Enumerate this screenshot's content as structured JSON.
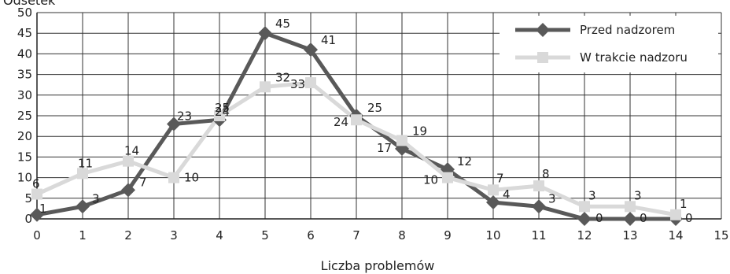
{
  "chart_data": {
    "type": "line",
    "title": "",
    "xlabel": "Liczba problemów",
    "ylabel": "Odsetek",
    "xlim": [
      0,
      15
    ],
    "ylim": [
      0,
      50
    ],
    "x_ticks": [
      "0",
      "1",
      "2",
      "3",
      "4",
      "5",
      "6",
      "7",
      "8",
      "9",
      "10",
      "11",
      "12",
      "13",
      "14",
      "15"
    ],
    "y_ticks": [
      "0",
      "5",
      "10",
      "15",
      "20",
      "25",
      "30",
      "35",
      "40",
      "45",
      "50"
    ],
    "grid": true,
    "legend_position": "top-right",
    "x": [
      0,
      1,
      2,
      3,
      4,
      5,
      6,
      7,
      8,
      9,
      10,
      11,
      12,
      13,
      14
    ],
    "series": [
      {
        "name": "Przed nadzorem",
        "color": "#595959",
        "marker": "diamond",
        "values": [
          1,
          3,
          7,
          23,
          24,
          45,
          41,
          25,
          17,
          12,
          4,
          3,
          0,
          0,
          0
        ],
        "labels": [
          "1",
          "3",
          "7",
          "23",
          "24",
          "45",
          "41",
          "25",
          "17",
          "12",
          "4",
          "3",
          "0",
          "0",
          "0"
        ]
      },
      {
        "name": "W trakcie nadzoru",
        "color": "#d9d9d9",
        "marker": "square",
        "values": [
          6,
          11,
          14,
          10,
          25,
          32,
          33,
          24,
          19,
          10,
          7,
          8,
          3,
          3,
          1
        ],
        "labels": [
          "6",
          "11",
          "14",
          "10",
          "25",
          "32",
          "33",
          "24",
          "19",
          "10",
          "7",
          "8",
          "3",
          "3",
          "1"
        ]
      }
    ]
  }
}
